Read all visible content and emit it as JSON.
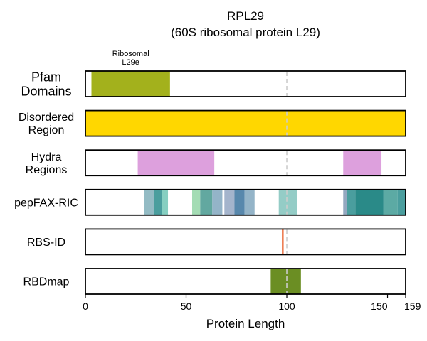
{
  "chart_data": {
    "type": "bar",
    "title": "RPL29",
    "subtitle": "(60S ribosomal protein L29)",
    "xlabel": "Protein Length",
    "xlim": [
      0,
      159
    ],
    "xticks": [
      0,
      50,
      100,
      150,
      159
    ],
    "reference_line_x": 100,
    "tracks": [
      {
        "label_lines": [
          "Pfam",
          "Domains"
        ],
        "segments": [
          {
            "start": 3,
            "end": 42,
            "color": "#a3b11c",
            "annotation_lines": [
              "Ribosomal",
              "L29e"
            ]
          }
        ]
      },
      {
        "label_lines": [
          "Disordered",
          "Region"
        ],
        "segments": [
          {
            "start": 0,
            "end": 159,
            "color": "#ffd700"
          }
        ]
      },
      {
        "label_lines": [
          "Hydra",
          "Regions"
        ],
        "segments": [
          {
            "start": 26,
            "end": 64,
            "color": "#dda0dd"
          },
          {
            "start": 128,
            "end": 147,
            "color": "#dda0dd"
          }
        ]
      },
      {
        "label_lines": [
          "pepFAX-RIC"
        ],
        "segments": [
          {
            "start": 29,
            "end": 34,
            "color": "#93bbc4"
          },
          {
            "start": 34,
            "end": 38,
            "color": "#4a9e9e"
          },
          {
            "start": 38,
            "end": 41,
            "color": "#86cfc1"
          },
          {
            "start": 53,
            "end": 57,
            "color": "#a4dcb4"
          },
          {
            "start": 57,
            "end": 63,
            "color": "#62a8a0"
          },
          {
            "start": 63,
            "end": 68,
            "color": "#94b4c8"
          },
          {
            "start": 69,
            "end": 74,
            "color": "#a4b4cc"
          },
          {
            "start": 74,
            "end": 79,
            "color": "#5888ac"
          },
          {
            "start": 79,
            "end": 84,
            "color": "#94b4c8"
          },
          {
            "start": 96,
            "end": 105,
            "color": "#94ccc6"
          },
          {
            "start": 128,
            "end": 130,
            "color": "#94a8c0"
          },
          {
            "start": 130,
            "end": 134,
            "color": "#4a9e9e"
          },
          {
            "start": 134,
            "end": 148,
            "color": "#2a8a88"
          },
          {
            "start": 148,
            "end": 155,
            "color": "#5caaa4"
          },
          {
            "start": 155,
            "end": 159,
            "color": "#4a9e9e"
          }
        ]
      },
      {
        "label_lines": [
          "RBS-ID"
        ],
        "markers": [
          {
            "position": 98,
            "color": "#e8541c"
          }
        ]
      },
      {
        "label_lines": [
          "RBDmap"
        ],
        "segments": [
          {
            "start": 92,
            "end": 107,
            "color": "#6b8e23"
          }
        ]
      }
    ]
  }
}
